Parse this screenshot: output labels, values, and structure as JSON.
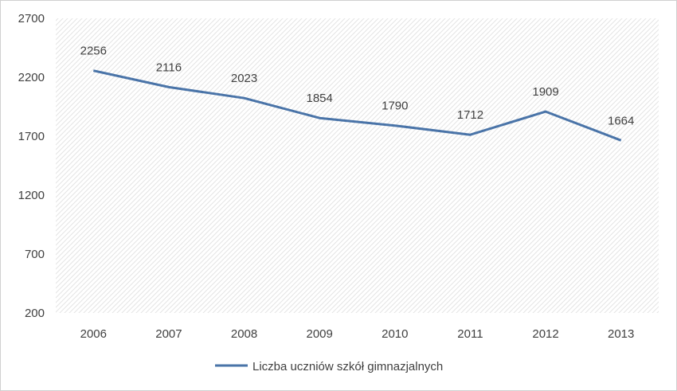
{
  "chart_data": {
    "type": "line",
    "title": "",
    "xlabel": "",
    "ylabel": "",
    "categories": [
      "2006",
      "2007",
      "2008",
      "2009",
      "2010",
      "2011",
      "2012",
      "2013"
    ],
    "series": [
      {
        "name": "Liczba uczniów szkół gimnazjalnych",
        "values": [
          2256,
          2116,
          2023,
          1854,
          1790,
          1712,
          1909,
          1664
        ],
        "color": "#4a74a8"
      }
    ],
    "y_ticks": [
      "200",
      "700",
      "1200",
      "1700",
      "2200",
      "2700"
    ],
    "ylim": [
      200,
      2700
    ],
    "grid": "hatched background",
    "data_labels": true,
    "legend_position": "bottom"
  }
}
